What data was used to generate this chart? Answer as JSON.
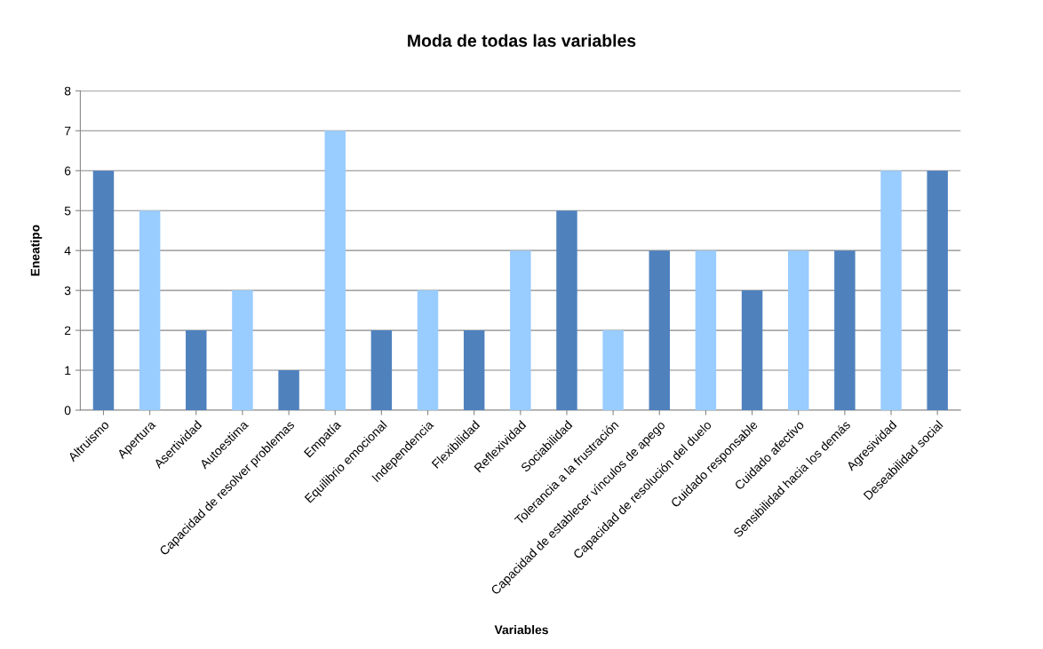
{
  "chart_data": {
    "type": "bar",
    "title": "Moda de todas las variables",
    "xlabel": "Variables",
    "ylabel": "Eneatipo",
    "categories": [
      "Altruismo",
      "Apertura",
      "Asertividad",
      "Autoestima",
      "Capacidad de resolver problemas",
      "Empatía",
      "Equilibrio emocional",
      "Independencia",
      "Flexibilidad",
      "Reflexividad",
      "Sociabilidad",
      "Tolerancia a la frustración",
      "Capacidad de establecer vínculos de apego",
      "Capacidad de resolución del duelo",
      "Cuidado responsable",
      "Cuidado afectivo",
      "Sensibilidad hacia los demás",
      "Agresividad",
      "Deseabilidad social"
    ],
    "values": [
      6,
      5,
      2,
      3,
      1,
      7,
      2,
      3,
      2,
      4,
      5,
      2,
      4,
      4,
      3,
      4,
      4,
      6,
      6
    ],
    "colors": [
      "#4f81bd",
      "#99ccff",
      "#4f81bd",
      "#99ccff",
      "#4f81bd",
      "#99ccff",
      "#4f81bd",
      "#99ccff",
      "#4f81bd",
      "#99ccff",
      "#4f81bd",
      "#99ccff",
      "#4f81bd",
      "#99ccff",
      "#4f81bd",
      "#99ccff",
      "#4f81bd",
      "#99ccff",
      "#4f81bd"
    ],
    "ylim": [
      0,
      8
    ],
    "yticks": [
      0,
      1,
      2,
      3,
      4,
      5,
      6,
      7,
      8
    ],
    "grid": "y"
  }
}
